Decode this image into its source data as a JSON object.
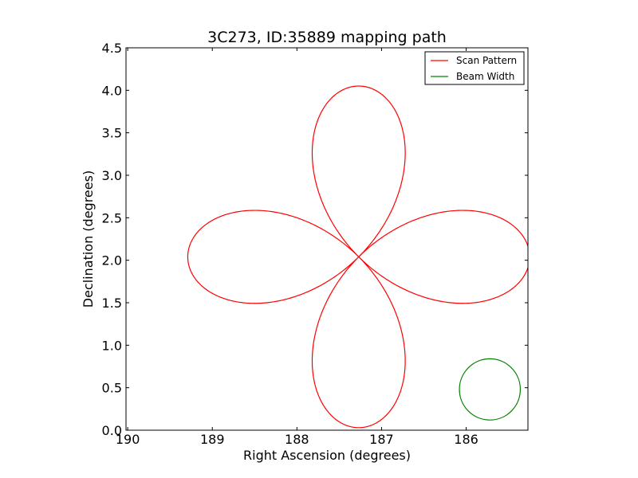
{
  "chart_data": {
    "type": "line",
    "title": "3C273, ID:35889 mapping path",
    "xlabel": "Right Ascension (degrees)",
    "ylabel": "Declination (degrees)",
    "xlim": [
      190.02,
      185.27
    ],
    "ylim": [
      0.0,
      4.5
    ],
    "x_ticks": [
      190,
      189,
      188,
      187,
      186
    ],
    "x_tick_labels": [
      "190",
      "189",
      "188",
      "187",
      "186"
    ],
    "y_ticks": [
      0.0,
      0.5,
      1.0,
      1.5,
      2.0,
      2.5,
      3.0,
      3.5,
      4.0,
      4.5
    ],
    "y_tick_labels": [
      "0.0",
      "0.5",
      "1.0",
      "1.5",
      "2.0",
      "2.5",
      "3.0",
      "3.5",
      "4.0",
      "4.5"
    ],
    "legend_position": "top-right",
    "series": [
      {
        "name": "Scan Pattern",
        "color": "#ff0000",
        "shape": "four-leaf rosette",
        "center": [
          187.27,
          2.04
        ],
        "x_extent": [
          185.27,
          189.29
        ],
        "y_extent": [
          0.05,
          4.05
        ]
      },
      {
        "name": "Beam Width",
        "color": "#008000",
        "shape": "circle",
        "center": [
          185.72,
          0.48
        ],
        "radius_deg": 0.36
      }
    ]
  }
}
